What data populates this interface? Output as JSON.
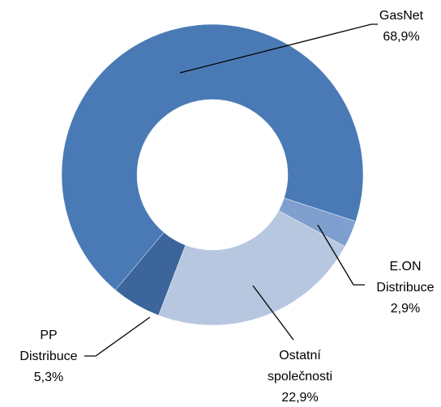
{
  "chart_data": {
    "type": "donut",
    "categories": [
      "GasNet",
      "E.ON Distribuce",
      "Ostatní společnosti",
      "PP Distribuce"
    ],
    "values": [
      68.9,
      2.9,
      22.9,
      5.3
    ],
    "value_labels": [
      "68,9%",
      "2,9%",
      "22,9%",
      "5,3%"
    ],
    "colors": [
      "#4a7ab5",
      "#7f9fcf",
      "#b8c7e0",
      "#3b659b"
    ]
  }
}
